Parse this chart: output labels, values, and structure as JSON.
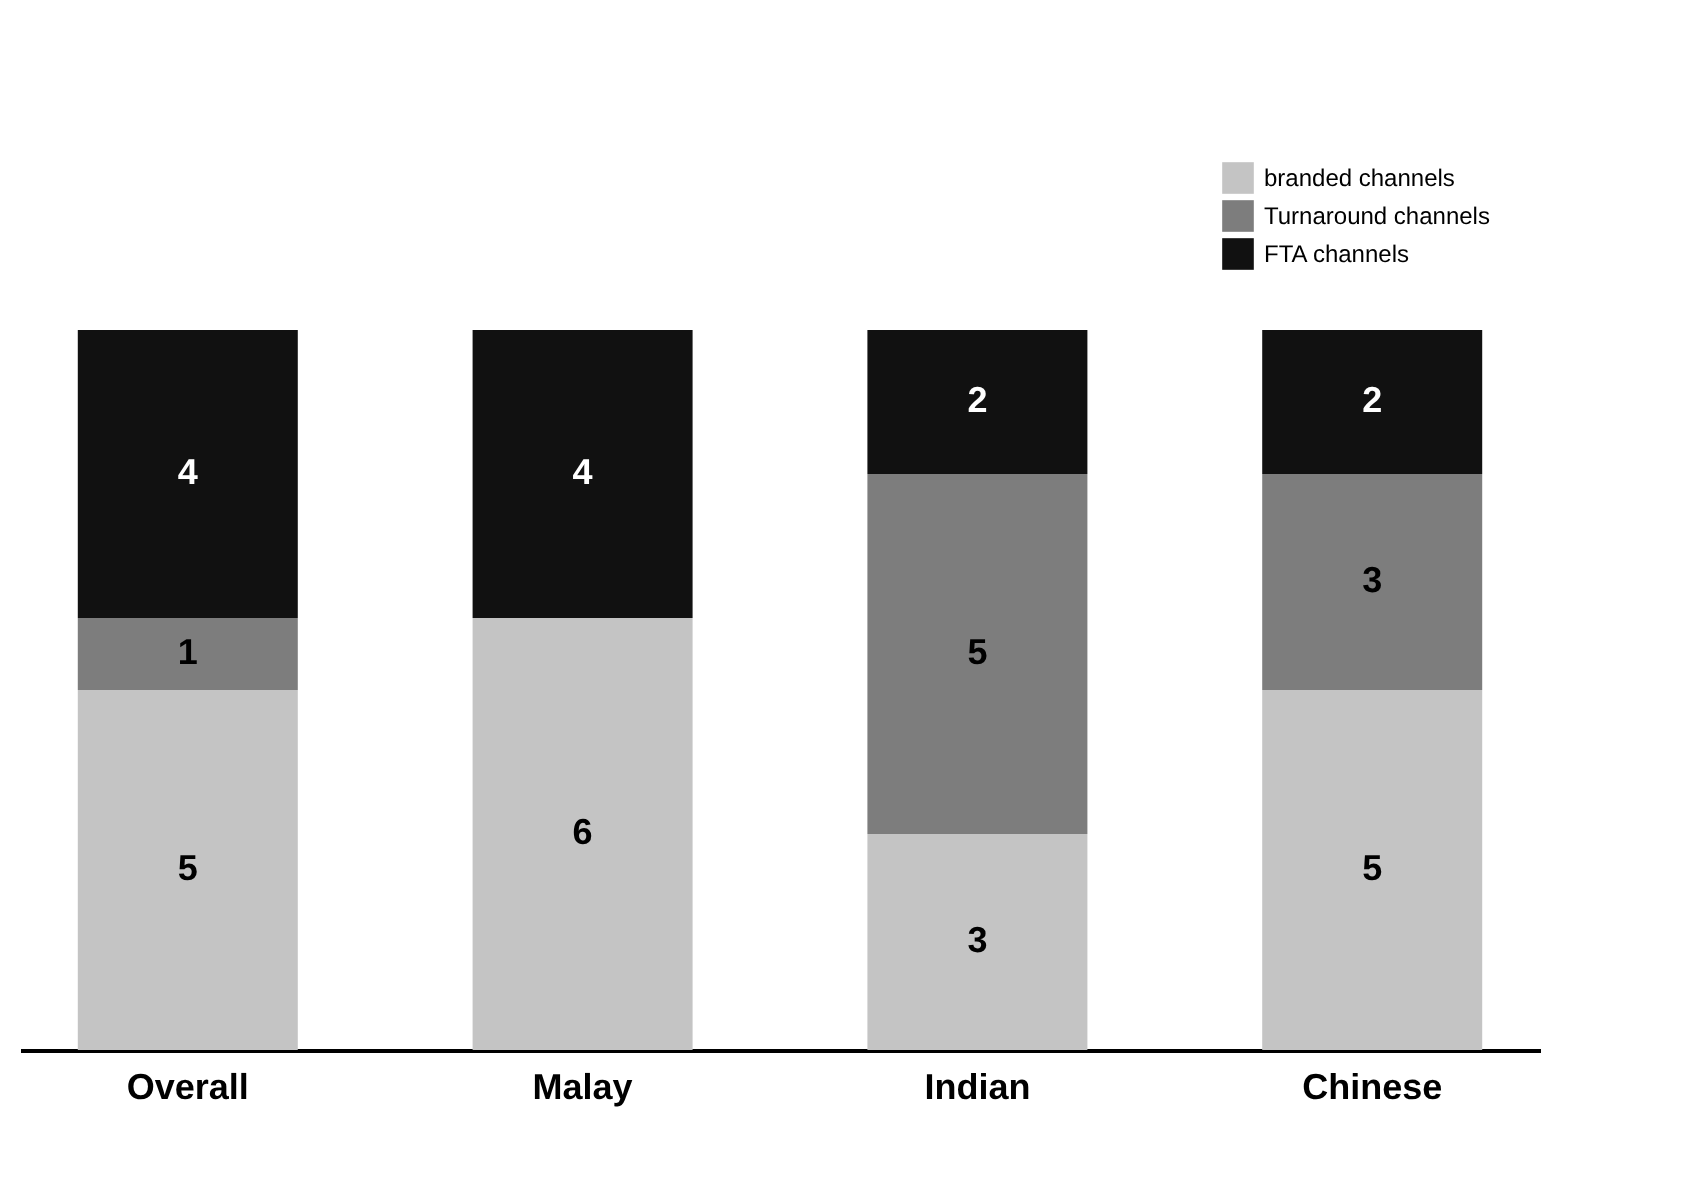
{
  "chart_data": {
    "type": "bar",
    "stacked": true,
    "categories": [
      "Overall",
      "Malay",
      "Indian",
      "Chinese"
    ],
    "series": [
      {
        "name": "branded channels",
        "color": "#c4c4c4",
        "values": [
          5,
          6,
          3,
          5
        ],
        "value_labels": [
          "5",
          "6",
          "3",
          "5"
        ]
      },
      {
        "name": "Turnaround channels",
        "color": "#7d7d7d",
        "values": [
          1,
          0,
          5,
          3
        ],
        "value_labels": [
          "1",
          null,
          "5",
          "3"
        ]
      },
      {
        "name": "FTA channels",
        "color": "#111111",
        "values": [
          4,
          4,
          2,
          2
        ],
        "value_labels": [
          "4",
          "4",
          "2",
          "2"
        ]
      }
    ],
    "legend": "top right"
  }
}
